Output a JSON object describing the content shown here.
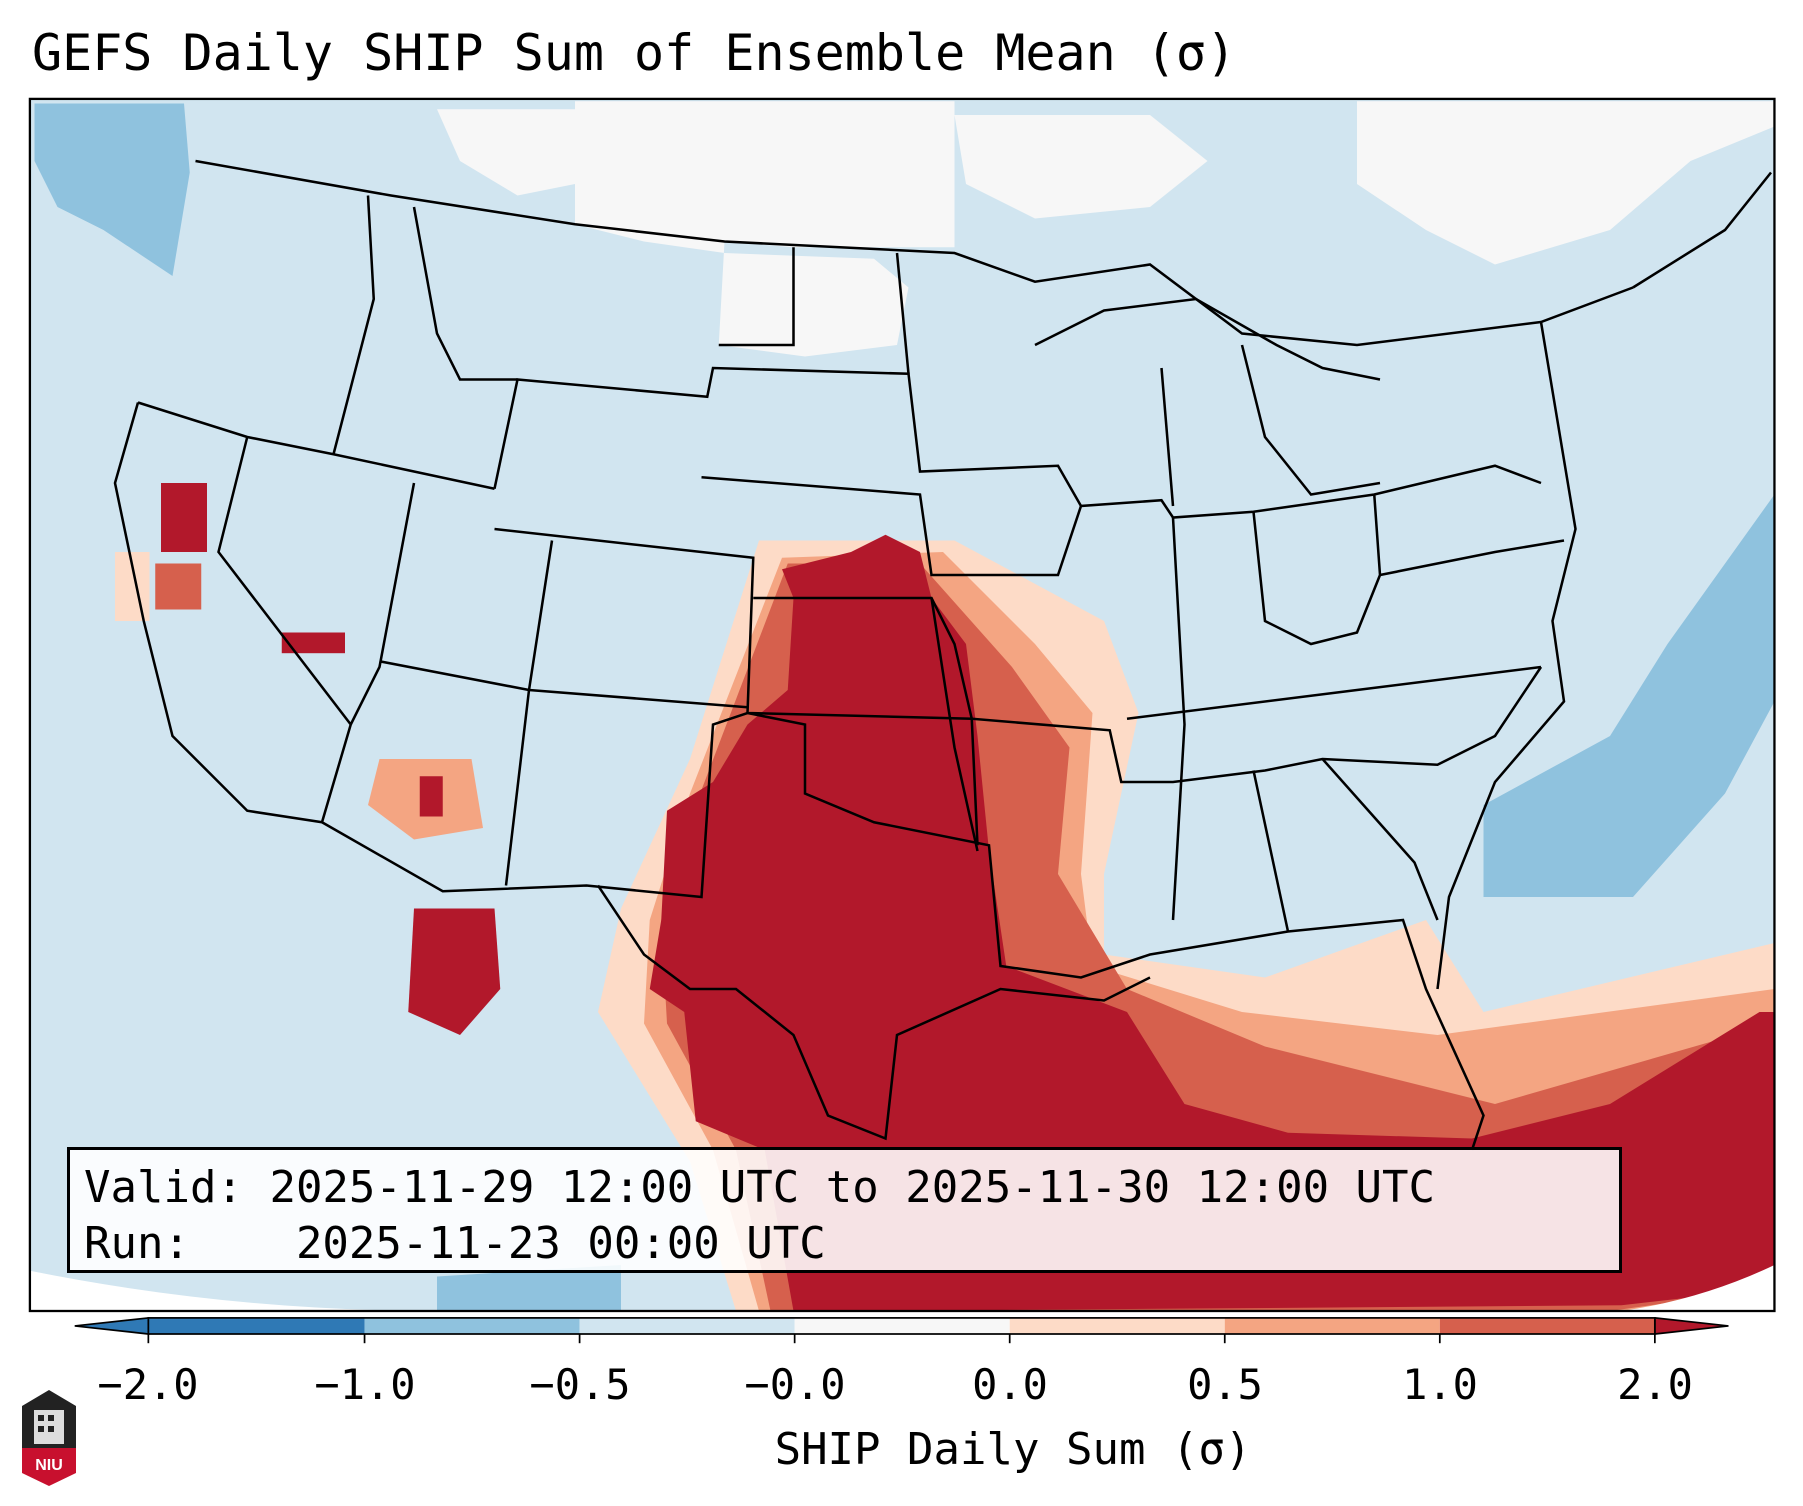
{
  "title": "GEFS Daily SHIP Sum of Ensemble Mean (σ)",
  "info": {
    "valid_label": "Valid:",
    "valid_value": "2025-11-29 12:00 UTC to 2025-11-30 12:00 UTC",
    "run_label": "Run:",
    "run_value": "2025-11-23 00:00 UTC"
  },
  "colorbar": {
    "label": "SHIP Daily Sum (σ)",
    "tick_labels": [
      "−2.0",
      "−1.0",
      "−0.5",
      "−0.0",
      "0.0",
      "0.5",
      "1.0",
      "2.0"
    ],
    "colors": [
      "#2f79b5",
      "#8fc2de",
      "#d1e5f0",
      "#f7f7f7",
      "#fddbc7",
      "#f4a582",
      "#d6604d",
      "#b2182b"
    ]
  },
  "logo": {
    "text": "NIU"
  }
}
